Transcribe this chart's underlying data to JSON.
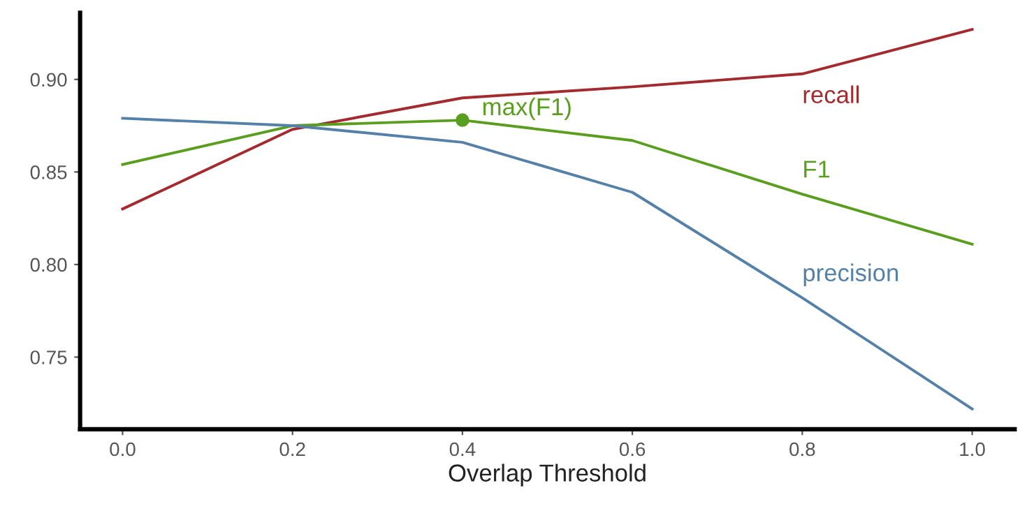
{
  "chart_data": {
    "type": "line",
    "xlabel": "Overlap Threshold",
    "x": [
      0.0,
      0.2,
      0.4,
      0.6,
      0.8,
      1.0
    ],
    "series": [
      {
        "name": "recall",
        "color": "#a32a2e",
        "values": [
          0.83,
          0.873,
          0.89,
          0.896,
          0.903,
          0.927
        ]
      },
      {
        "name": "F1",
        "color": "#5a9e1f",
        "values": [
          0.854,
          0.875,
          0.878,
          0.867,
          0.838,
          0.811
        ]
      },
      {
        "name": "precision",
        "color": "#5580a8",
        "values": [
          0.879,
          0.875,
          0.866,
          0.839,
          0.782,
          0.722
        ]
      }
    ],
    "annotations": [
      {
        "text": "max(F1)",
        "x": 0.4,
        "y": 0.878
      }
    ],
    "xlim": [
      -0.05,
      1.05
    ],
    "ylim": [
      0.711,
      0.936
    ],
    "xticks": [
      {
        "value": 0,
        "label": "0.0"
      },
      0.2,
      0.4,
      0.6,
      0.8,
      {
        "value": 1,
        "label": "1.0"
      }
    ],
    "yticks": [
      0.75,
      {
        "value": 0.8,
        "label": "0.80"
      },
      0.85,
      {
        "value": 0.9,
        "label": "0.90"
      }
    ],
    "grid": false,
    "marker": "none",
    "line_style": "solid"
  }
}
